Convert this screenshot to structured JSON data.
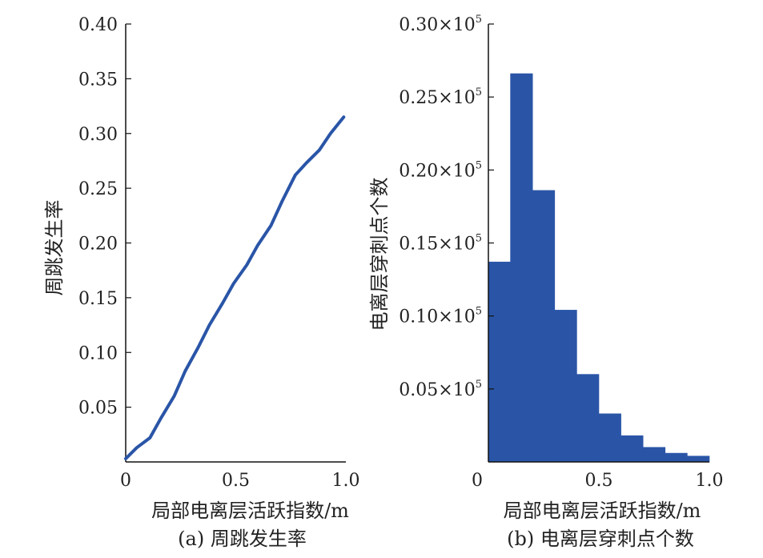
{
  "chart_data": [
    {
      "type": "line",
      "caption": "(a) 周跳发生率",
      "xlabel": "局部电离层活跃指数/m",
      "ylabel": "周跳发生率",
      "xlim": [
        0,
        1.0
      ],
      "ylim": [
        0,
        0.4
      ],
      "xticks": [
        "0",
        "0.5",
        "1.0"
      ],
      "yticks": [
        "0.05",
        "0.10",
        "0.15",
        "0.20",
        "0.25",
        "0.30",
        "0.35",
        "0.40"
      ],
      "color": "#2a55a7",
      "grid": false,
      "series": [
        {
          "x": [
            0,
            0.05,
            0.11,
            0.16,
            0.22,
            0.27,
            0.33,
            0.38,
            0.44,
            0.49,
            0.55,
            0.6,
            0.66,
            0.71,
            0.77,
            0.82,
            0.88,
            0.93,
            0.99
          ],
          "y": [
            0.003,
            0.013,
            0.022,
            0.04,
            0.06,
            0.083,
            0.105,
            0.125,
            0.145,
            0.163,
            0.18,
            0.198,
            0.216,
            0.238,
            0.262,
            0.273,
            0.285,
            0.3,
            0.315
          ]
        }
      ]
    },
    {
      "type": "bar",
      "caption": "(b) 电离层穿刺点个数",
      "xlabel": "局部电离层活跃指数/m",
      "ylabel": "电离层穿刺点个数",
      "xlim": [
        0,
        1.0
      ],
      "ylim": [
        0,
        30000
      ],
      "xticks": [
        "0",
        "0.5",
        "1.0"
      ],
      "yticks": [
        {
          "mantissa": "0.05",
          "exp": "5"
        },
        {
          "mantissa": "0.10",
          "exp": "5"
        },
        {
          "mantissa": "0.15",
          "exp": "5"
        },
        {
          "mantissa": "0.20",
          "exp": "5"
        },
        {
          "mantissa": "0.25",
          "exp": "5"
        },
        {
          "mantissa": "0.30",
          "exp": "5"
        }
      ],
      "tick_times": "×10",
      "color": "#2a55a7",
      "grid": false,
      "bin_edges": [
        0,
        0.1,
        0.2,
        0.3,
        0.4,
        0.5,
        0.6,
        0.7,
        0.8,
        0.9,
        1.0
      ],
      "values": [
        13700,
        26600,
        18600,
        10400,
        6000,
        3300,
        1800,
        1000,
        600,
        400
      ]
    }
  ]
}
